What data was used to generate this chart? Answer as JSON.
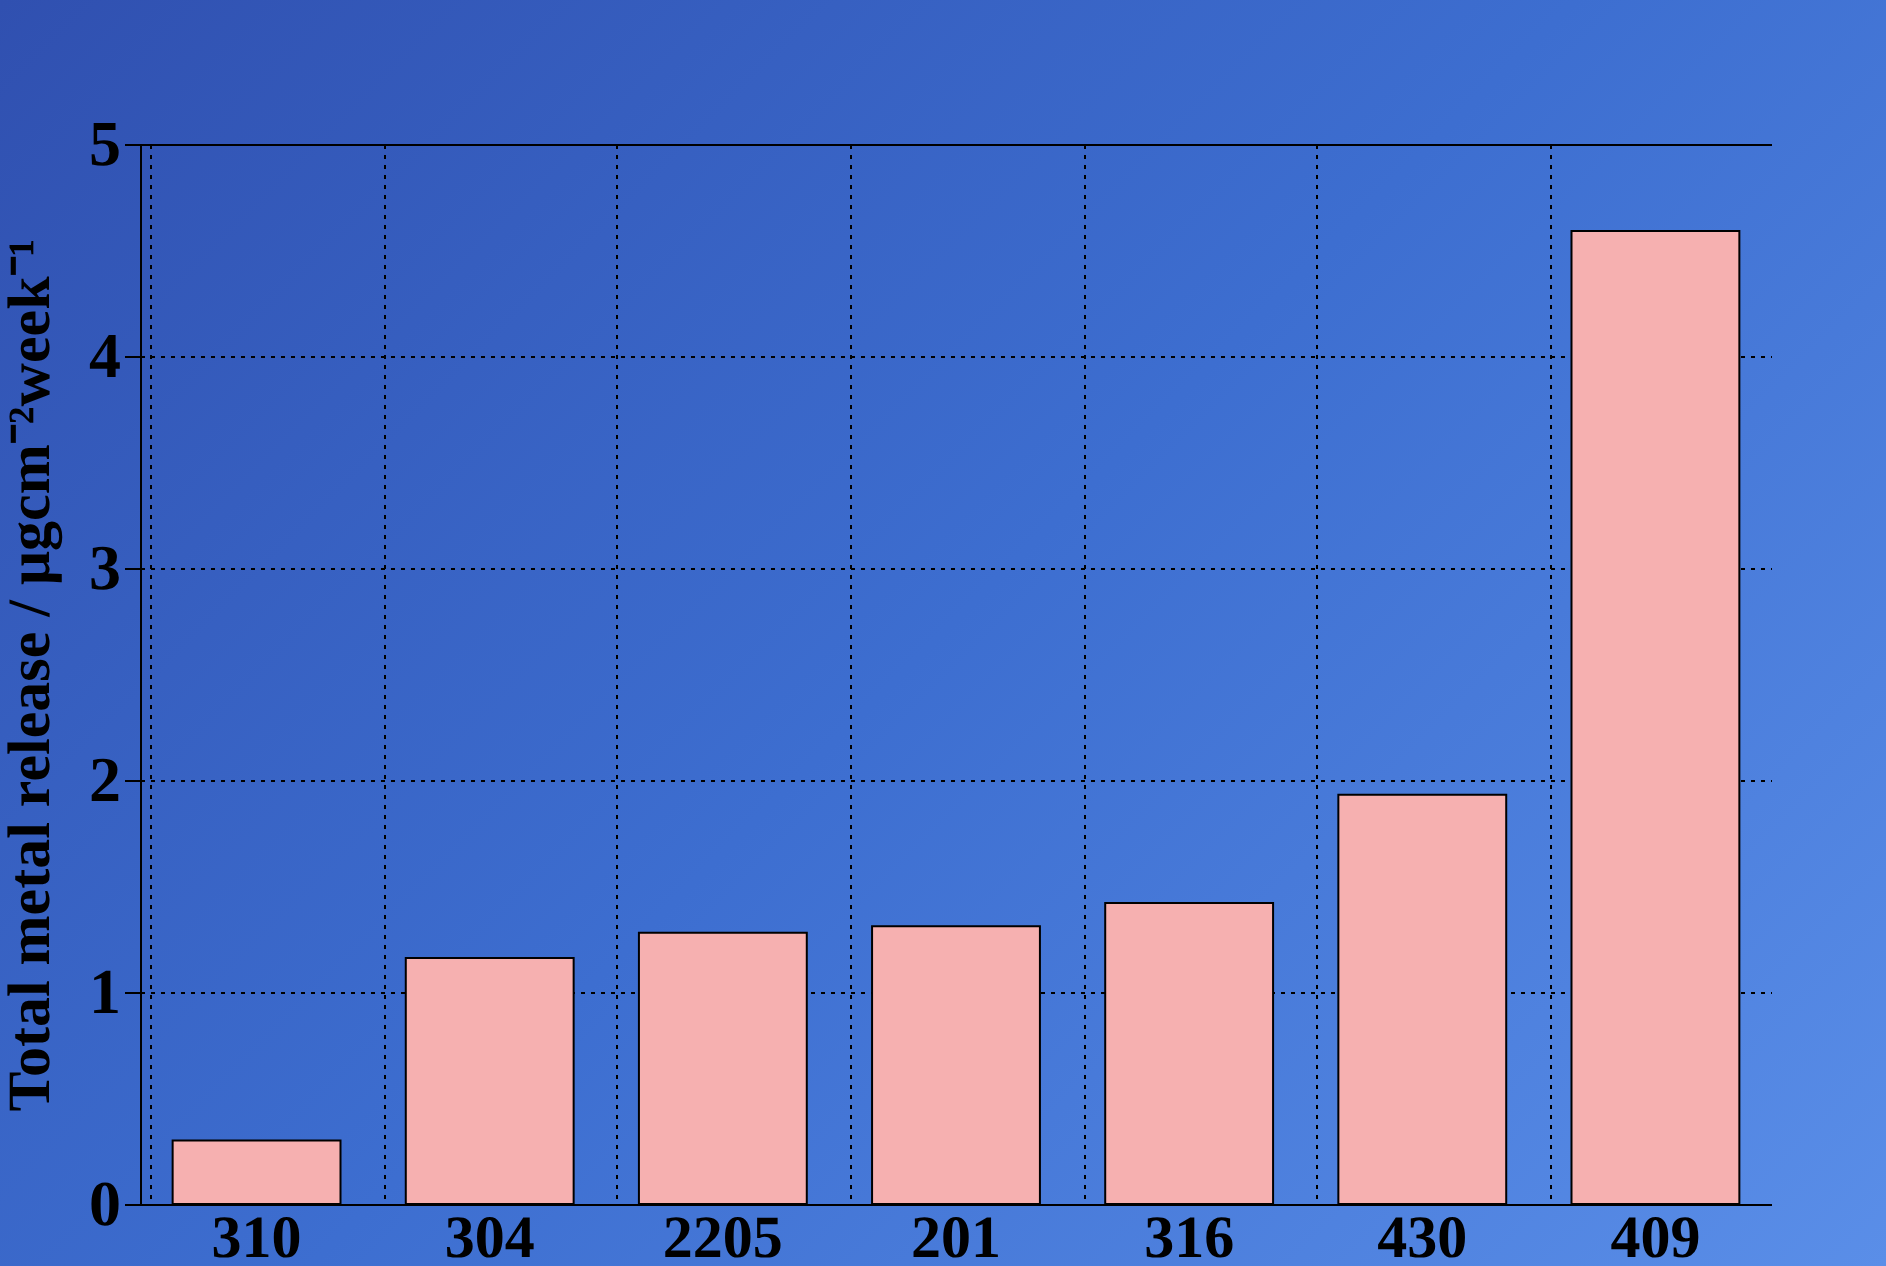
{
  "chart_data": {
    "type": "bar",
    "ylabel": "Total metal release  / μgcm⁻²week⁻¹",
    "categories": [
      "310",
      "304",
      "2205",
      "201",
      "316",
      "430",
      "409"
    ],
    "values": [
      0.3,
      1.16,
      1.28,
      1.31,
      1.42,
      1.93,
      4.59
    ],
    "color": "#f6b0b0",
    "ylim": [
      0,
      5
    ],
    "yticks": [
      0,
      1,
      2,
      3,
      4,
      5
    ],
    "grid": true
  }
}
